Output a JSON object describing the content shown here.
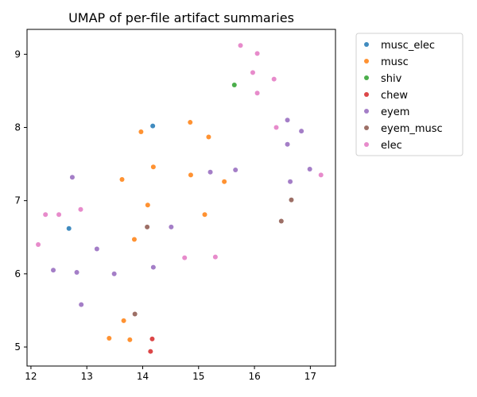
{
  "chart_data": {
    "type": "scatter",
    "title": "UMAP of per-file artifact summaries",
    "xlabel": "",
    "ylabel": "",
    "xlim": [
      11.93,
      17.45
    ],
    "ylim": [
      4.74,
      9.34
    ],
    "xticks": [
      12,
      13,
      14,
      15,
      16,
      17
    ],
    "yticks": [
      5,
      6,
      7,
      8,
      9
    ],
    "grid": false,
    "legend_position": "outside-right-top",
    "series": [
      {
        "name": "musc_elec",
        "color": "#1f77b4",
        "points": [
          [
            14.18,
            8.02
          ],
          [
            12.68,
            6.62
          ]
        ]
      },
      {
        "name": "musc",
        "color": "#ff7f0e",
        "points": [
          [
            14.85,
            8.07
          ],
          [
            13.97,
            7.94
          ],
          [
            15.18,
            7.87
          ],
          [
            14.19,
            7.46
          ],
          [
            14.86,
            7.35
          ],
          [
            13.63,
            7.29
          ],
          [
            15.46,
            7.26
          ],
          [
            14.09,
            6.94
          ],
          [
            15.11,
            6.81
          ],
          [
            13.85,
            6.47
          ],
          [
            13.66,
            5.36
          ],
          [
            13.4,
            5.12
          ],
          [
            13.77,
            5.1
          ]
        ]
      },
      {
        "name": "shiv",
        "color": "#2ca02c",
        "points": [
          [
            15.64,
            8.58
          ]
        ]
      },
      {
        "name": "chew",
        "color": "#d62728",
        "points": [
          [
            14.17,
            5.11
          ],
          [
            14.14,
            4.94
          ]
        ]
      },
      {
        "name": "eyem",
        "color": "#9467bd",
        "points": [
          [
            16.59,
            8.1
          ],
          [
            16.84,
            7.95
          ],
          [
            16.59,
            7.77
          ],
          [
            16.99,
            7.43
          ],
          [
            15.66,
            7.42
          ],
          [
            15.21,
            7.39
          ],
          [
            12.74,
            7.32
          ],
          [
            16.64,
            7.26
          ],
          [
            14.51,
            6.64
          ],
          [
            13.18,
            6.34
          ],
          [
            14.19,
            6.09
          ],
          [
            12.4,
            6.05
          ],
          [
            12.82,
            6.02
          ],
          [
            13.49,
            6.0
          ],
          [
            12.9,
            5.58
          ]
        ]
      },
      {
        "name": "eyem_musc",
        "color": "#8c564b",
        "points": [
          [
            16.66,
            7.01
          ],
          [
            16.48,
            6.72
          ],
          [
            14.08,
            6.64
          ],
          [
            13.86,
            5.45
          ]
        ]
      },
      {
        "name": "elec",
        "color": "#e377c2",
        "points": [
          [
            15.75,
            9.12
          ],
          [
            16.05,
            9.01
          ],
          [
            15.97,
            8.75
          ],
          [
            16.35,
            8.66
          ],
          [
            16.05,
            8.47
          ],
          [
            16.39,
            8.0
          ],
          [
            17.19,
            7.35
          ],
          [
            12.89,
            6.88
          ],
          [
            12.26,
            6.81
          ],
          [
            12.5,
            6.81
          ],
          [
            12.13,
            6.4
          ],
          [
            15.3,
            6.23
          ],
          [
            14.75,
            6.22
          ]
        ]
      }
    ]
  }
}
